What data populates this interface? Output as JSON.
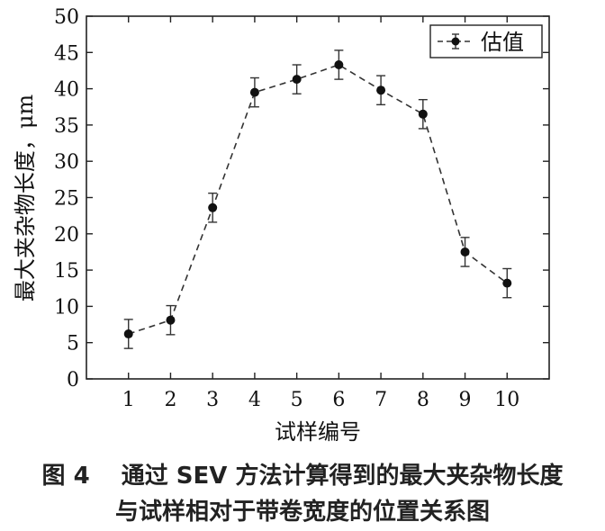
{
  "chart_data": {
    "type": "line",
    "categories": [
      "1",
      "2",
      "3",
      "4",
      "5",
      "6",
      "7",
      "8",
      "9",
      "10"
    ],
    "series": [
      {
        "name": "估值",
        "values": [
          6.2,
          8.1,
          23.6,
          39.5,
          41.3,
          43.3,
          39.8,
          36.5,
          17.5,
          13.2
        ],
        "error": [
          2.0,
          2.0,
          2.0,
          2.0,
          2.0,
          2.0,
          2.0,
          2.0,
          2.0,
          2.0
        ],
        "line_style": "dashed",
        "marker": "circle",
        "color": "#111111"
      }
    ],
    "xlabel": "试样编号",
    "ylabel": "最大夹杂物长度，μm",
    "xlim": [
      0,
      11
    ],
    "ylim": [
      0,
      50
    ],
    "yticks": [
      0,
      5,
      10,
      15,
      20,
      25,
      30,
      35,
      40,
      45,
      50
    ],
    "xticks": [
      1,
      2,
      3,
      4,
      5,
      6,
      7,
      8,
      9,
      10
    ],
    "grid": false,
    "legend_position": "top-right"
  },
  "caption": {
    "line1": "图 4　 通过 SEV 方法计算得到的最大夹杂物长度",
    "line2": "与试样相对于带卷宽度的位置关系图"
  }
}
